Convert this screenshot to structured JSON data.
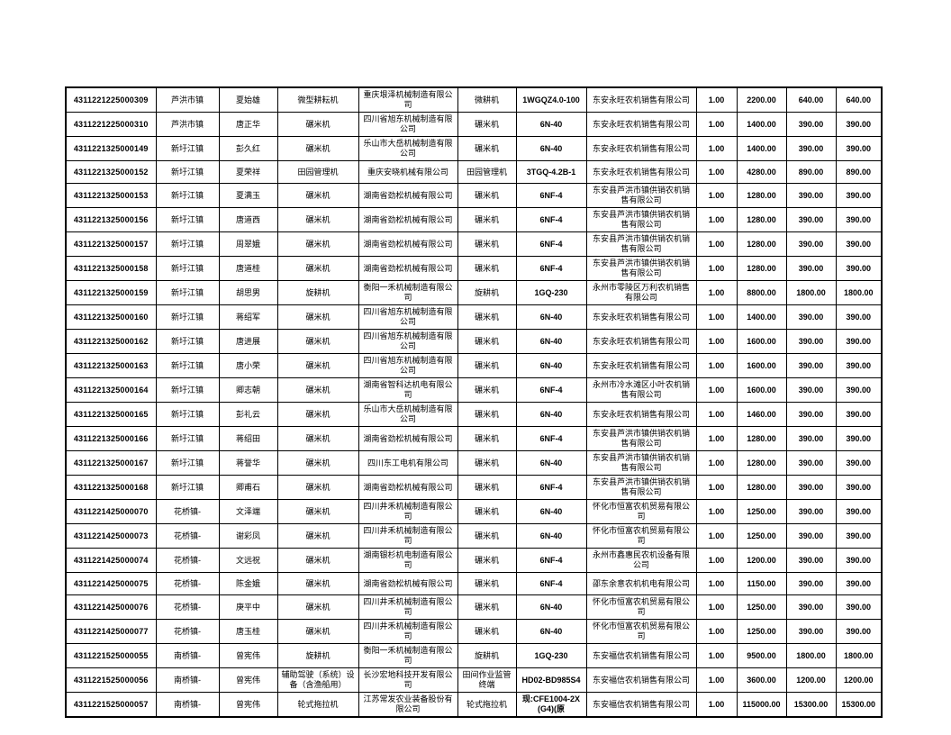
{
  "table": {
    "rows": [
      [
        "4311221225000309",
        "芦洪市镇",
        "夏始雄",
        "微型耕耘机",
        "重庆垠泽机械制造有限公司",
        "微耕机",
        "1WGQZ4.0-100",
        "东安永旺农机销售有限公司",
        "1.00",
        "2200.00",
        "640.00",
        "640.00"
      ],
      [
        "4311221225000310",
        "芦洪市镇",
        "唐正华",
        "碾米机",
        "四川省旭东机械制造有限公司",
        "碾米机",
        "6N-40",
        "东安永旺农机销售有限公司",
        "1.00",
        "1400.00",
        "390.00",
        "390.00"
      ],
      [
        "4311221325000149",
        "新圩江镇",
        "彭久红",
        "碾米机",
        "乐山市大岳机械制造有限公司",
        "碾米机",
        "6N-40",
        "东安永旺农机销售有限公司",
        "1.00",
        "1400.00",
        "390.00",
        "390.00"
      ],
      [
        "4311221325000152",
        "新圩江镇",
        "夏荣祥",
        "田园管理机",
        "重庆安晓机械有限公司",
        "田园管理机",
        "3TGQ-4.2B-1",
        "东安永旺农机销售有限公司",
        "1.00",
        "4280.00",
        "890.00",
        "890.00"
      ],
      [
        "4311221325000153",
        "新圩江镇",
        "夏满玉",
        "碾米机",
        "湖南省劲松机械有限公司",
        "碾米机",
        "6NF-4",
        "东安县芦洪市镇供销农机销售有限公司",
        "1.00",
        "1280.00",
        "390.00",
        "390.00"
      ],
      [
        "4311221325000156",
        "新圩江镇",
        "唐道西",
        "碾米机",
        "湖南省劲松机械有限公司",
        "碾米机",
        "6NF-4",
        "东安县芦洪市镇供销农机销售有限公司",
        "1.00",
        "1280.00",
        "390.00",
        "390.00"
      ],
      [
        "4311221325000157",
        "新圩江镇",
        "周翠娥",
        "碾米机",
        "湖南省劲松机械有限公司",
        "碾米机",
        "6NF-4",
        "东安县芦洪市镇供销农机销售有限公司",
        "1.00",
        "1280.00",
        "390.00",
        "390.00"
      ],
      [
        "4311221325000158",
        "新圩江镇",
        "唐道桂",
        "碾米机",
        "湖南省劲松机械有限公司",
        "碾米机",
        "6NF-4",
        "东安县芦洪市镇供销农机销售有限公司",
        "1.00",
        "1280.00",
        "390.00",
        "390.00"
      ],
      [
        "4311221325000159",
        "新圩江镇",
        "胡思男",
        "旋耕机",
        "衡阳一禾机械制造有限公司",
        "旋耕机",
        "1GQ-230",
        "永州市零陵区万利农机销售有限公司",
        "1.00",
        "8800.00",
        "1800.00",
        "1800.00"
      ],
      [
        "4311221325000160",
        "新圩江镇",
        "蒋绍军",
        "碾米机",
        "四川省旭东机械制造有限公司",
        "碾米机",
        "6N-40",
        "东安永旺农机销售有限公司",
        "1.00",
        "1400.00",
        "390.00",
        "390.00"
      ],
      [
        "4311221325000162",
        "新圩江镇",
        "唐进展",
        "碾米机",
        "四川省旭东机械制造有限公司",
        "碾米机",
        "6N-40",
        "东安永旺农机销售有限公司",
        "1.00",
        "1600.00",
        "390.00",
        "390.00"
      ],
      [
        "4311221325000163",
        "新圩江镇",
        "唐小荣",
        "碾米机",
        "四川省旭东机械制造有限公司",
        "碾米机",
        "6N-40",
        "东安永旺农机销售有限公司",
        "1.00",
        "1600.00",
        "390.00",
        "390.00"
      ],
      [
        "4311221325000164",
        "新圩江镇",
        "卿志朝",
        "碾米机",
        "湖南省智科达机电有限公司",
        "碾米机",
        "6NF-4",
        "永州市冷水滩区小叶农机销售有限公司",
        "1.00",
        "1600.00",
        "390.00",
        "390.00"
      ],
      [
        "4311221325000165",
        "新圩江镇",
        "彭礼云",
        "碾米机",
        "乐山市大岳机械制造有限公司",
        "碾米机",
        "6N-40",
        "东安永旺农机销售有限公司",
        "1.00",
        "1460.00",
        "390.00",
        "390.00"
      ],
      [
        "4311221325000166",
        "新圩江镇",
        "蒋绍田",
        "碾米机",
        "湖南省劲松机械有限公司",
        "碾米机",
        "6NF-4",
        "东安县芦洪市镇供销农机销售有限公司",
        "1.00",
        "1280.00",
        "390.00",
        "390.00"
      ],
      [
        "4311221325000167",
        "新圩江镇",
        "蒋誉华",
        "碾米机",
        "四川东工电机有限公司",
        "碾米机",
        "6N-40",
        "东安县芦洪市镇供销农机销售有限公司",
        "1.00",
        "1280.00",
        "390.00",
        "390.00"
      ],
      [
        "4311221325000168",
        "新圩江镇",
        "卿甫石",
        "碾米机",
        "湖南省劲松机械有限公司",
        "碾米机",
        "6NF-4",
        "东安县芦洪市镇供销农机销售有限公司",
        "1.00",
        "1280.00",
        "390.00",
        "390.00"
      ],
      [
        "4311221425000070",
        "花桥镇-",
        "文泽端",
        "碾米机",
        "四川井禾机械制造有限公司",
        "碾米机",
        "6N-40",
        "怀化市恒富农机贸易有限公司",
        "1.00",
        "1250.00",
        "390.00",
        "390.00"
      ],
      [
        "4311221425000073",
        "花桥镇-",
        "谢彩凤",
        "碾米机",
        "四川井禾机械制造有限公司",
        "碾米机",
        "6N-40",
        "怀化市恒富农机贸易有限公司",
        "1.00",
        "1250.00",
        "390.00",
        "390.00"
      ],
      [
        "4311221425000074",
        "花桥镇-",
        "文远祝",
        "碾米机",
        "湖南银杉机电制造有限公司",
        "碾米机",
        "6NF-4",
        "永州市鑫惠民农机设备有限公司",
        "1.00",
        "1200.00",
        "390.00",
        "390.00"
      ],
      [
        "4311221425000075",
        "花桥镇-",
        "陈金娥",
        "碾米机",
        "湖南省劲松机械有限公司",
        "碾米机",
        "6NF-4",
        "邵东余意农机机电有限公司",
        "1.00",
        "1150.00",
        "390.00",
        "390.00"
      ],
      [
        "4311221425000076",
        "花桥镇-",
        "庚平中",
        "碾米机",
        "四川井禾机械制造有限公司",
        "碾米机",
        "6N-40",
        "怀化市恒富农机贸易有限公司",
        "1.00",
        "1250.00",
        "390.00",
        "390.00"
      ],
      [
        "4311221425000077",
        "花桥镇-",
        "唐玉桂",
        "碾米机",
        "四川井禾机械制造有限公司",
        "碾米机",
        "6N-40",
        "怀化市恒富农机贸易有限公司",
        "1.00",
        "1250.00",
        "390.00",
        "390.00"
      ],
      [
        "4311221525000055",
        "南桥镇-",
        "曾宪伟",
        "旋耕机",
        "衡阳一禾机械制造有限公司",
        "旋耕机",
        "1GQ-230",
        "东安福信农机销售有限公司",
        "1.00",
        "9500.00",
        "1800.00",
        "1800.00"
      ],
      [
        "4311221525000056",
        "南桥镇-",
        "曾宪伟",
        "辅助驾驶（系统）设备（含渔船用）",
        "长沙宏地科技开发有限公司",
        "田间作业监管终端",
        "HD02-BD985S4",
        "东安福信农机销售有限公司",
        "1.00",
        "3600.00",
        "1200.00",
        "1200.00"
      ],
      [
        "4311221525000057",
        "南桥镇-",
        "曾宪伟",
        "轮式拖拉机",
        "江苏常发农业装备股份有限公司",
        "轮式拖拉机",
        "现:CFE1004-2X(G4)(原",
        "东安福信农机销售有限公司",
        "1.00",
        "115000.00",
        "15300.00",
        "15300.00"
      ]
    ]
  }
}
